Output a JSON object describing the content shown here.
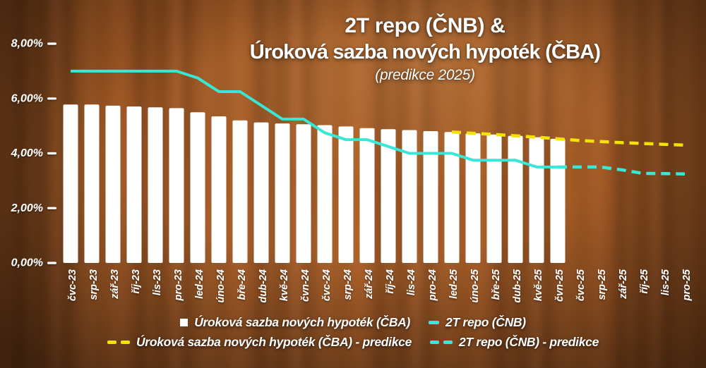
{
  "title": {
    "line1": "2T repo (ČNB) &",
    "line2": "Úroková sazba nových hypoték (ČBA)",
    "subtitle": "(predikce 2025)"
  },
  "colors": {
    "teal": "#38e7d6",
    "yellow": "#f2e205",
    "bar": "#ffffff",
    "text": "#ffffff"
  },
  "legend": {
    "rows": [
      [
        {
          "marker": "square",
          "color": "#ffffff",
          "label": "Úroková sazba nových hypoték (ČBA)"
        },
        {
          "marker": "line",
          "color": "#38e7d6",
          "label": "2T repo (ČNB)"
        }
      ],
      [
        {
          "marker": "dashes",
          "color": "#f2e205",
          "label": "Úroková sazba nových hypoték (ČBA) - predikce"
        },
        {
          "marker": "dashes",
          "color": "#38e7d6",
          "label": "2T repo (ČNB) - predikce"
        }
      ]
    ]
  },
  "chart_data": {
    "type": "bar",
    "title": "2T repo (ČNB) & Úroková sazba nových hypoték (ČBA) (predikce 2025)",
    "xlabel": "",
    "ylabel": "",
    "ylim": [
      0,
      8.4
    ],
    "grid": false,
    "legend_position": "bottom",
    "categories": [
      "čvc-23",
      "srp-23",
      "zář-23",
      "říj-23",
      "lis-23",
      "pro-23",
      "led-24",
      "úno-24",
      "bře-24",
      "dub-24",
      "kvě-24",
      "čvn-24",
      "čvc-24",
      "srp-24",
      "zář-24",
      "říj-24",
      "lis-24",
      "pro-24",
      "led-25",
      "úno-25",
      "bře-25",
      "dub-25",
      "kvě-25",
      "čvn-25",
      "čvc-25",
      "srp-25",
      "zář-25",
      "říj-25",
      "lis-25",
      "pro-25"
    ],
    "y_axis": {
      "ticks": [
        {
          "label": "0,00%",
          "value": 0
        },
        {
          "label": "2,00%",
          "value": 2
        },
        {
          "label": "4,00%",
          "value": 4
        },
        {
          "label": "6,00%",
          "value": 6
        },
        {
          "label": "8,00%",
          "value": 8
        }
      ]
    },
    "series": [
      {
        "name": "Úroková sazba nových hypoték (ČBA)",
        "type": "bar",
        "style": "solid",
        "color": "#ffffff",
        "start_index": 0,
        "values": [
          5.78,
          5.78,
          5.74,
          5.71,
          5.68,
          5.65,
          5.5,
          5.35,
          5.2,
          5.13,
          5.09,
          5.06,
          5.03,
          4.98,
          4.92,
          4.88,
          4.85,
          4.81,
          4.78,
          4.73,
          4.69,
          4.64,
          4.59,
          4.53
        ]
      },
      {
        "name": "2T repo (ČNB)",
        "type": "line",
        "style": "solid",
        "color": "#38e7d6",
        "start_index": 0,
        "values": [
          7.0,
          7.0,
          7.0,
          7.0,
          7.0,
          7.0,
          6.75,
          6.25,
          6.25,
          5.75,
          5.25,
          5.25,
          4.75,
          4.5,
          4.5,
          4.25,
          4.0,
          4.0,
          4.0,
          3.75,
          3.75,
          3.75,
          3.5,
          3.5
        ]
      },
      {
        "name": "Úroková sazba nových hypoték (ČBA) - predikce",
        "type": "line",
        "style": "dashed",
        "color": "#f2e205",
        "start_index": 18,
        "values": [
          4.78,
          4.73,
          4.69,
          4.64,
          4.59,
          4.53,
          4.47,
          4.43,
          4.39,
          4.36,
          4.33,
          4.3
        ]
      },
      {
        "name": "2T repo (ČNB) - predikce",
        "type": "line",
        "style": "dashed",
        "color": "#38e7d6",
        "start_index": 23,
        "values": [
          3.5,
          3.5,
          3.5,
          3.4,
          3.27,
          3.26,
          3.25
        ]
      }
    ]
  }
}
